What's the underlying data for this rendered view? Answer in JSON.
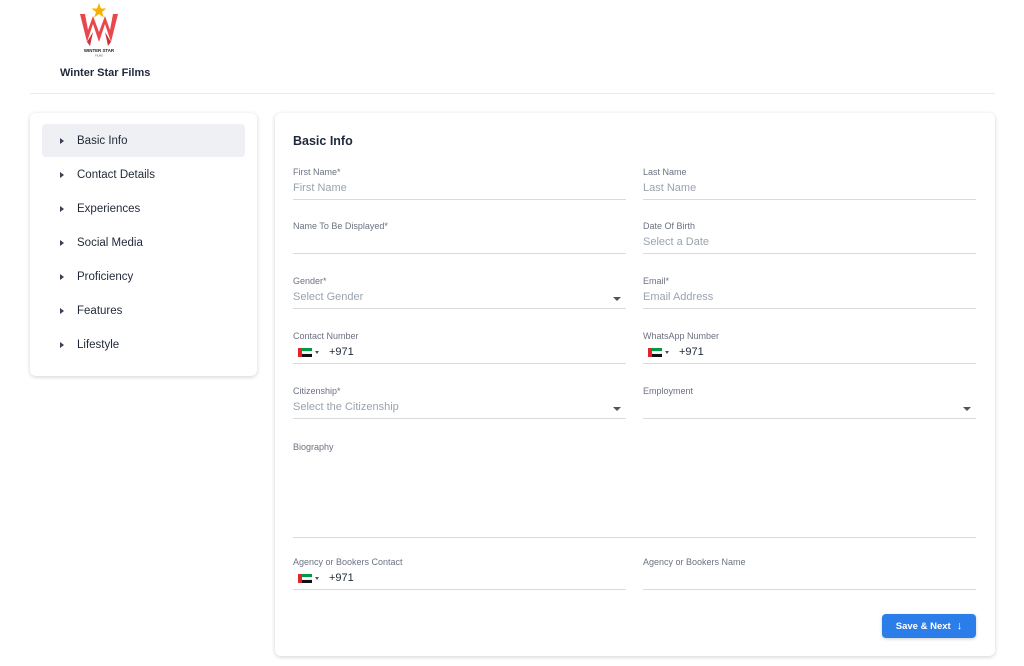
{
  "brand": {
    "logo_text": "WINTER STAR",
    "logo_subtext": "FILMS",
    "name": "Winter Star Films"
  },
  "sidebar": {
    "items": [
      {
        "label": "Basic Info",
        "active": true
      },
      {
        "label": "Contact Details"
      },
      {
        "label": "Experiences"
      },
      {
        "label": "Social Media"
      },
      {
        "label": "Proficiency"
      },
      {
        "label": "Features"
      },
      {
        "label": "Lifestyle"
      }
    ]
  },
  "form": {
    "title": "Basic Info",
    "first_name": {
      "label": "First Name",
      "required": "*",
      "placeholder": "First Name"
    },
    "last_name": {
      "label": "Last Name",
      "placeholder": "Last Name"
    },
    "display_name": {
      "label": "Name To Be Displayed",
      "required": "*",
      "value": ""
    },
    "dob": {
      "label": "Date Of Birth",
      "placeholder": "Select a Date"
    },
    "gender": {
      "label": "Gender",
      "required": "*",
      "placeholder": "Select Gender"
    },
    "email": {
      "label": "Email",
      "required": "*",
      "placeholder": "Email Address"
    },
    "contact_number": {
      "label": "Contact Number",
      "code": "+971"
    },
    "whatsapp_number": {
      "label": "WhatsApp Number",
      "code": "+971"
    },
    "citizenship": {
      "label": "Citizenship",
      "required": "*",
      "placeholder": "Select the Citizenship"
    },
    "employment": {
      "label": "Employment",
      "value": ""
    },
    "biography": {
      "label": "Biography",
      "value": ""
    },
    "agency_contact": {
      "label": "Agency or Bookers Contact",
      "code": "+971"
    },
    "agency_name": {
      "label": "Agency or Bookers Name",
      "value": ""
    },
    "save_label": "Save & Next"
  },
  "colors": {
    "accent": "#2b7de9",
    "logo_red": "#e8484b",
    "logo_star": "#f5b300"
  },
  "icons": {
    "save_arrow": "arrow-down-icon",
    "sidebar_caret": "caret-right-icon",
    "select": "caret-down-icon",
    "flag": "uae-flag-icon"
  }
}
